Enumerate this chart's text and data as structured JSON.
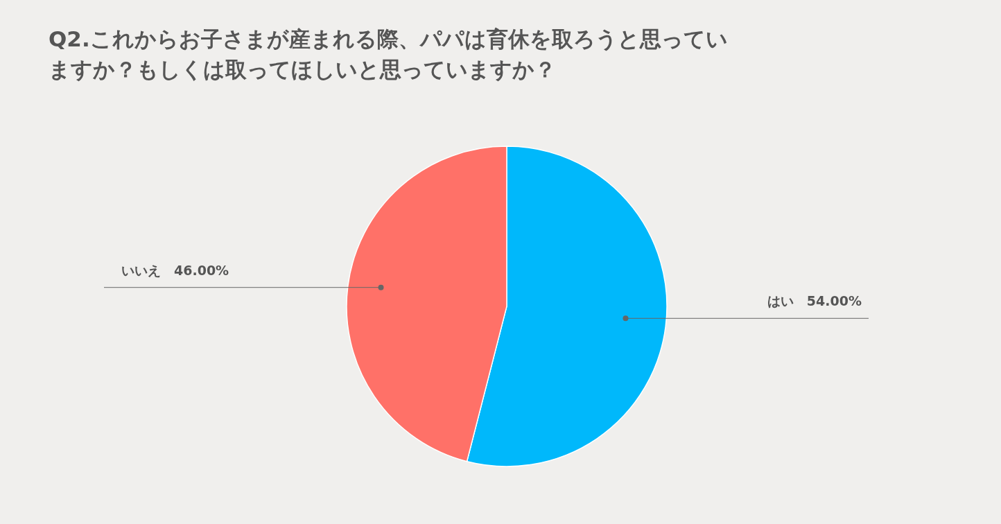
{
  "chart_data": {
    "type": "pie",
    "title": "Q2.これからお子さまが産まれる際、パパは育休を取ろうと思っていますか？もしくは取ってほしいと思っていますか？",
    "categories": [
      "はい",
      "いいえ"
    ],
    "values": [
      54,
      46
    ],
    "value_labels": [
      "54.00%",
      "46.00%"
    ],
    "colors": [
      "#00b8fb",
      "#ff7168"
    ],
    "legend": false
  }
}
